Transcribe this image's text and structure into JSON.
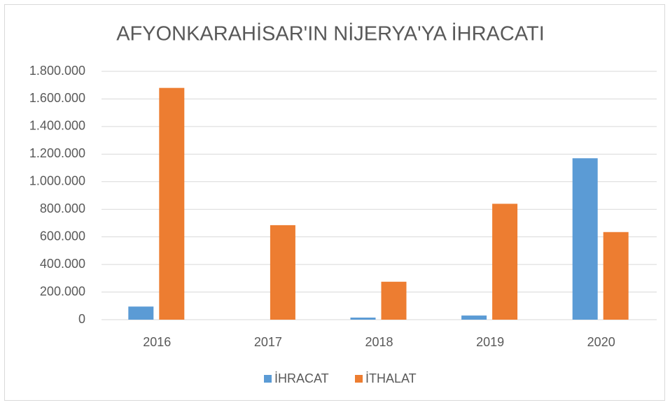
{
  "chart_data": {
    "type": "bar",
    "title": "AFYONKARAHİSAR'IN NİJERYA'YA İHRACATI",
    "categories": [
      "2016",
      "2017",
      "2018",
      "2019",
      "2020"
    ],
    "series": [
      {
        "name": "İHRACAT",
        "color": "#5b9bd5",
        "values": [
          95000,
          0,
          15000,
          30000,
          1170000
        ]
      },
      {
        "name": "İTHALAT",
        "color": "#ed7d31",
        "values": [
          1680000,
          685000,
          275000,
          840000,
          635000
        ]
      }
    ],
    "ylim": [
      0,
      1800000
    ],
    "yticks": [
      0,
      {
        "value": 200000,
        "label": "200.000"
      },
      {
        "value": 400000,
        "label": "400.000"
      },
      {
        "value": 600000,
        "label": "600.000"
      },
      {
        "value": 800000,
        "label": "800.000"
      },
      {
        "value": 1000000,
        "label": "1.000.000"
      },
      {
        "value": 1200000,
        "label": "1.200.000"
      },
      {
        "value": 1400000,
        "label": "1.400.000"
      },
      {
        "value": 1600000,
        "label": "1.600.000"
      },
      {
        "value": 1800000,
        "label": "1.800.000"
      }
    ],
    "grid": true,
    "legend": "bottom"
  }
}
